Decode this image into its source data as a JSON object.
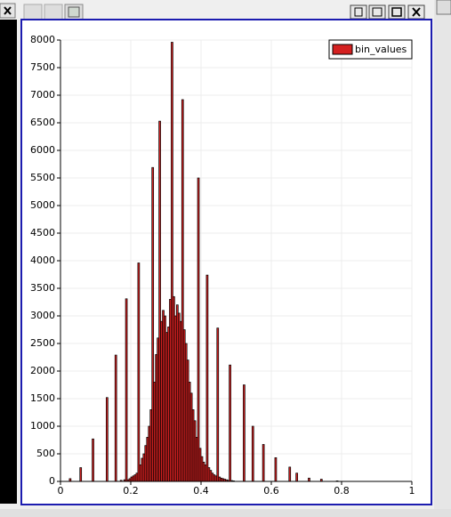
{
  "chart_data": {
    "type": "histogram",
    "bins": [
      0,
      0.005,
      0.01,
      0.015,
      0.02,
      0.025,
      0.03,
      0.035,
      0.04,
      0.045,
      0.05,
      0.055,
      0.06,
      0.065,
      0.07,
      0.075,
      0.08,
      0.085,
      0.09,
      0.095,
      0.1,
      0.105,
      0.11,
      0.115,
      0.12,
      0.125,
      0.13,
      0.135,
      0.14,
      0.145,
      0.15,
      0.155,
      0.16,
      0.165,
      0.17,
      0.175,
      0.18,
      0.185,
      0.19,
      0.195,
      0.2,
      0.205,
      0.21,
      0.215,
      0.22,
      0.225,
      0.23,
      0.235,
      0.24,
      0.245,
      0.25,
      0.255,
      0.26,
      0.265,
      0.27,
      0.275,
      0.28,
      0.285,
      0.29,
      0.295,
      0.3,
      0.305,
      0.31,
      0.315,
      0.32,
      0.325,
      0.33,
      0.335,
      0.34,
      0.345,
      0.35,
      0.355,
      0.36,
      0.365,
      0.37,
      0.375,
      0.38,
      0.385,
      0.39,
      0.395,
      0.4,
      0.405,
      0.41,
      0.415,
      0.42,
      0.425,
      0.43,
      0.435,
      0.44,
      0.445,
      0.45,
      0.455,
      0.46,
      0.465,
      0.47,
      0.475,
      0.48,
      0.485,
      0.49,
      0.495,
      0.5,
      0.505,
      0.51,
      0.515,
      0.52,
      0.525,
      0.53,
      0.535,
      0.54,
      0.545,
      0.55,
      0.555,
      0.56,
      0.565,
      0.57,
      0.575,
      0.58,
      0.585,
      0.59,
      0.595,
      0.6,
      0.605,
      0.61,
      0.615,
      0.62,
      0.625,
      0.63,
      0.635,
      0.64,
      0.645,
      0.65,
      0.655,
      0.66,
      0.665,
      0.67,
      0.675,
      0.68,
      0.685,
      0.69,
      0.695,
      0.7,
      0.705,
      0.71,
      0.715,
      0.72,
      0.725,
      0.73,
      0.735,
      0.74,
      0.745,
      0.75,
      0.755,
      0.76,
      0.765,
      0.77,
      0.775,
      0.78,
      0.785,
      0.79,
      0.795,
      0.8
    ],
    "series": [
      {
        "name": "bin_values",
        "color": "#d42020",
        "values": [
          0,
          0,
          0,
          0,
          0,
          50,
          0,
          0,
          0,
          0,
          0,
          250,
          0,
          0,
          0,
          0,
          0,
          0,
          770,
          0,
          0,
          0,
          0,
          0,
          0,
          0,
          1520,
          0,
          0,
          0,
          0,
          2290,
          0,
          0,
          20,
          0,
          30,
          3310,
          30,
          50,
          80,
          100,
          120,
          150,
          3960,
          300,
          420,
          500,
          650,
          800,
          1000,
          1300,
          5690,
          1800,
          2300,
          2600,
          6530,
          2900,
          3100,
          3000,
          2700,
          2800,
          3300,
          7960,
          3350,
          3000,
          3200,
          3050,
          2900,
          6920,
          2750,
          2500,
          2200,
          1800,
          1600,
          1300,
          1100,
          800,
          5500,
          600,
          450,
          350,
          300,
          3740,
          250,
          200,
          150,
          120,
          100,
          2780,
          80,
          60,
          50,
          40,
          30,
          20,
          2110,
          15,
          10,
          0,
          0,
          0,
          0,
          0,
          1750,
          0,
          0,
          0,
          0,
          1000,
          0,
          0,
          0,
          0,
          0,
          670,
          0,
          0,
          0,
          0,
          0,
          0,
          430,
          0,
          0,
          0,
          0,
          0,
          0,
          0,
          260,
          0,
          0,
          0,
          150,
          0,
          0,
          0,
          0,
          0,
          0,
          60,
          0,
          0,
          0,
          0,
          0,
          0,
          40,
          0,
          0,
          0,
          0,
          0,
          0,
          0,
          0,
          10,
          0,
          0
        ]
      }
    ],
    "xlim": [
      0,
      1
    ],
    "ylim": [
      0,
      8000
    ],
    "xticks": [
      0,
      0.2,
      0.4,
      0.6,
      0.8,
      1
    ],
    "yticks": [
      0,
      500,
      1000,
      1500,
      2000,
      2500,
      3000,
      3500,
      4000,
      4500,
      5000,
      5500,
      6000,
      6500,
      7000,
      7500,
      8000
    ],
    "grid": true,
    "legend": "top-right"
  }
}
